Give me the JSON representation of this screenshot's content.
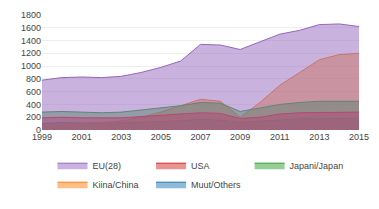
{
  "chart_data": {
    "type": "area",
    "stacked": false,
    "x": [
      1999,
      2000,
      2001,
      2002,
      2003,
      2004,
      2005,
      2006,
      2007,
      2008,
      2009,
      2010,
      2011,
      2012,
      2013,
      2014,
      2015
    ],
    "series": [
      {
        "name": "EU(28)",
        "values": [
          780,
          820,
          830,
          820,
          840,
          900,
          980,
          1080,
          1340,
          1330,
          1260,
          1380,
          1500,
          1560,
          1650,
          1660,
          1620
        ]
      },
      {
        "name": "USA",
        "values": [
          190,
          200,
          190,
          185,
          190,
          210,
          230,
          250,
          270,
          260,
          180,
          200,
          250,
          270,
          270,
          275,
          280
        ]
      },
      {
        "name": "Japani/Japan",
        "values": [
          280,
          290,
          280,
          270,
          280,
          310,
          340,
          380,
          430,
          420,
          290,
          340,
          400,
          430,
          450,
          450,
          450
        ]
      },
      {
        "name": "Kiina/China",
        "values": [
          50,
          70,
          90,
          110,
          140,
          200,
          280,
          380,
          480,
          450,
          200,
          430,
          700,
          900,
          1100,
          1180,
          1200
        ]
      },
      {
        "name": "Muut/Others",
        "values": [
          100,
          115,
          110,
          105,
          110,
          120,
          130,
          145,
          165,
          155,
          120,
          140,
          165,
          175,
          175,
          180,
          185
        ]
      }
    ],
    "xlim": [
      1999,
      2015
    ],
    "xticks": [
      1999,
      2001,
      2003,
      2005,
      2007,
      2009,
      2011,
      2013,
      2015
    ],
    "ylim": [
      0,
      1800
    ],
    "yticks": [
      0,
      200,
      400,
      600,
      800,
      1000,
      1200,
      1400,
      1600,
      1800
    ],
    "grid": true,
    "legend": "bottom"
  }
}
